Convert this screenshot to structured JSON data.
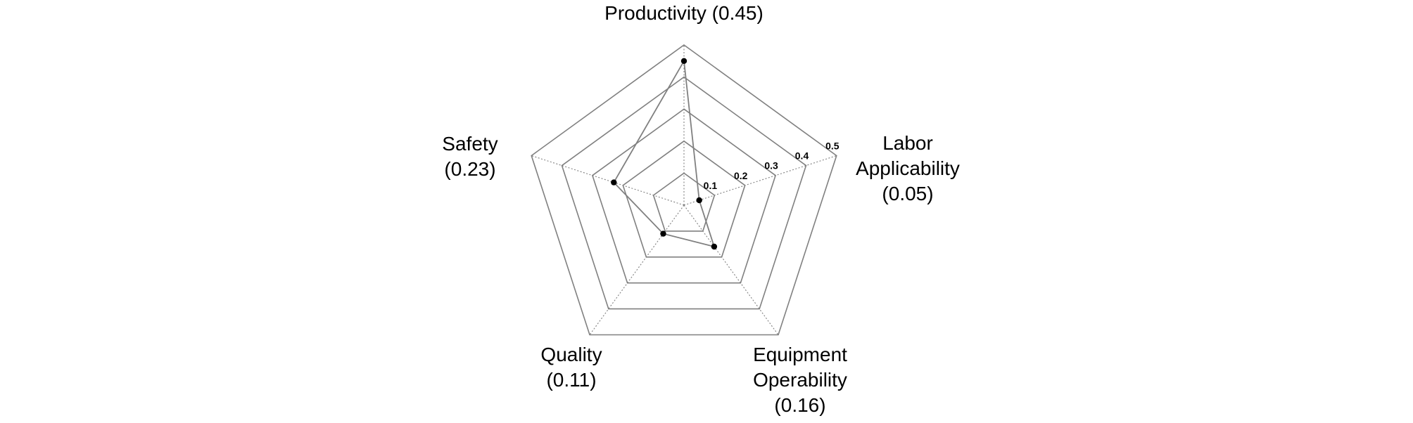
{
  "chart_data": {
    "type": "radar",
    "title": "",
    "rlim": [
      0,
      0.5
    ],
    "ticks": [
      0.1,
      0.2,
      0.3,
      0.4,
      0.5
    ],
    "tick_labels": [
      "0.1",
      "0.2",
      "0.3",
      "0.4",
      "0.5"
    ],
    "grid": true,
    "axes": [
      {
        "name": "Productivity",
        "label_lines": [
          "Productivity (0.45)"
        ]
      },
      {
        "name": "Labor Applicability",
        "label_lines": [
          "Labor",
          "Applicability",
          "(0.05)"
        ]
      },
      {
        "name": "Equipment Operability",
        "label_lines": [
          "Equipment",
          "Operability",
          "(0.16)"
        ]
      },
      {
        "name": "Quality",
        "label_lines": [
          "Quality",
          "(0.11)"
        ]
      },
      {
        "name": "Safety",
        "label_lines": [
          "Safety",
          "(0.23)"
        ]
      }
    ],
    "series": [
      {
        "values": [
          0.45,
          0.05,
          0.16,
          0.11,
          0.23
        ]
      }
    ]
  }
}
